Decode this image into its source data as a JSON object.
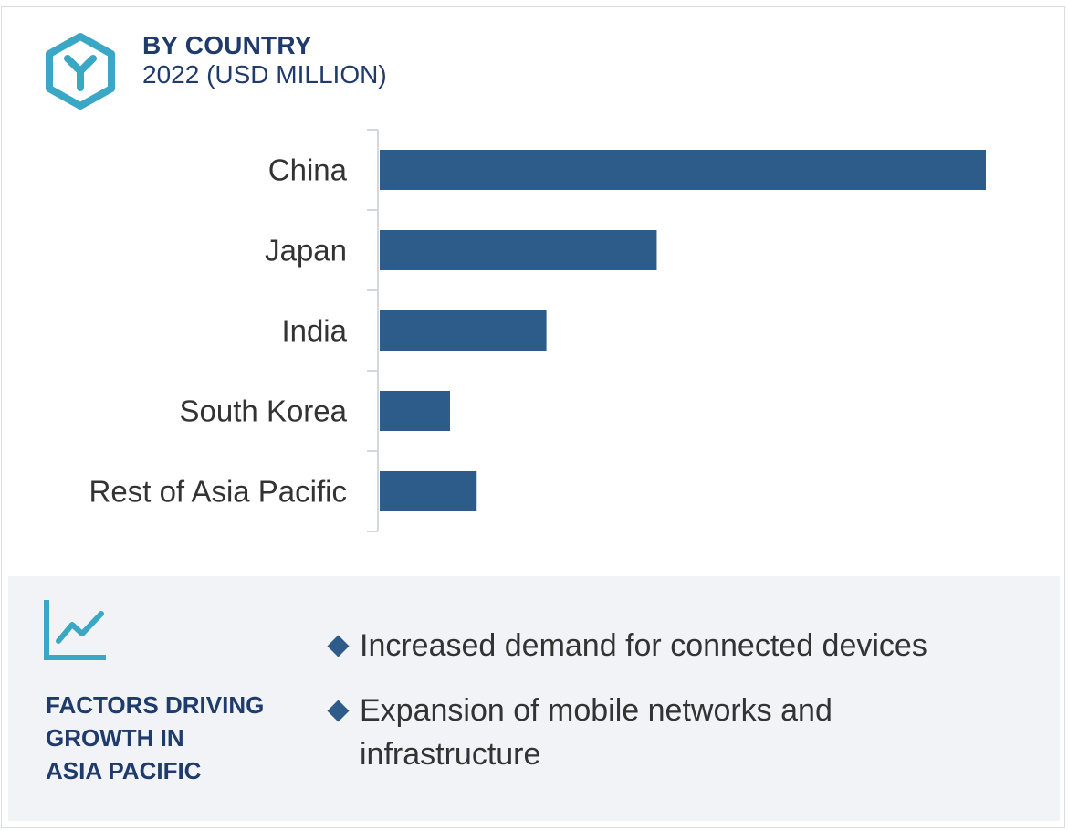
{
  "header": {
    "title": "BY COUNTRY",
    "subtitle": "2022 (USD MILLION)",
    "icon": "hexagon-y-logo-icon"
  },
  "colors": {
    "bar": "#2d5b8a",
    "accent": "#3aa8c4",
    "heading": "#1f3b6b",
    "panel_bg": "#f1f3f7"
  },
  "chart_data": {
    "type": "bar",
    "orientation": "horizontal",
    "categories": [
      "China",
      "Japan",
      "India",
      "South Korea",
      "Rest of Asia Pacific"
    ],
    "values": [
      100,
      45.7,
      27.5,
      11.6,
      16.0
    ],
    "title": "BY COUNTRY",
    "subtitle": "2022 (USD MILLION)",
    "xlabel": "",
    "ylabel": "",
    "xlim": [
      0,
      100
    ],
    "grid": false,
    "value_labels_shown": false
  },
  "factors": {
    "icon": "line-chart-icon",
    "heading_lines": [
      "FACTORS DRIVING",
      "GROWTH IN",
      "ASIA PACIFIC"
    ],
    "items": [
      "Increased demand for connected devices",
      "Expansion of mobile networks and infrastructure"
    ]
  }
}
